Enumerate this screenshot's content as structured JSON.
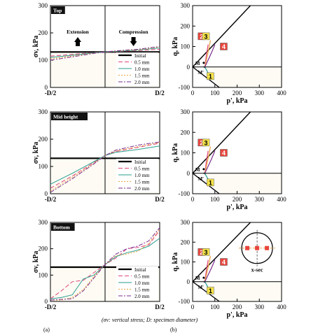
{
  "figure": {
    "caption": "(σv: vertical stress; D: specimen diameter)",
    "label_a": "(a)",
    "label_b": "(b)"
  },
  "legend": {
    "initial": "Initial",
    "mm05": "0.5 mm",
    "mm10": "1.0 mm",
    "mm15": "1.5 mm",
    "mm20": "2.0 mm"
  },
  "colors": {
    "initial": "#000000",
    "mm05": "#e0457b",
    "mm10": "#2a9d8f",
    "mm15": "#e9a23b",
    "mm20": "#7b2d8e",
    "badge_red": "#e8453c",
    "badge_yellow": "#f7e44a"
  },
  "chart_data": [
    {
      "type": "line",
      "panel": "left-top",
      "tag": "Top",
      "ylabel": "σv, kPa",
      "ylim": [
        0,
        300
      ],
      "yticks": [
        "0",
        "100",
        "200",
        "300"
      ],
      "xticks": [
        "-D/2",
        "D/2"
      ],
      "x": [
        0,
        0.2,
        0.4,
        0.5,
        0.6,
        0.8,
        1.0
      ],
      "annotations": [
        "Extension",
        "Compression"
      ],
      "series": [
        {
          "name": "Initial",
          "values": [
            130,
            130,
            130,
            130,
            130,
            130,
            130
          ]
        },
        {
          "name": "0.5 mm",
          "values": [
            115,
            121,
            128,
            130,
            131,
            135,
            140
          ]
        },
        {
          "name": "1.0 mm",
          "values": [
            110,
            118,
            127,
            130,
            132,
            137,
            145
          ]
        },
        {
          "name": "1.5 mm",
          "values": [
            105,
            115,
            126,
            130,
            133,
            138,
            148
          ]
        },
        {
          "name": "2.0 mm",
          "values": [
            100,
            112,
            125,
            130,
            134,
            140,
            150
          ]
        }
      ]
    },
    {
      "type": "line",
      "panel": "left-mid",
      "tag": "Mid height",
      "ylabel": "σv, kPa",
      "ylim": [
        0,
        300
      ],
      "yticks": [
        "0",
        "100",
        "200",
        "300"
      ],
      "xticks": [
        "-D/2",
        "D/2"
      ],
      "x": [
        0,
        0.2,
        0.4,
        0.5,
        0.6,
        0.8,
        1.0
      ],
      "series": [
        {
          "name": "Initial",
          "values": [
            130,
            130,
            130,
            130,
            130,
            130,
            130
          ]
        },
        {
          "name": "0.5 mm",
          "values": [
            20,
            65,
            115,
            140,
            155,
            170,
            185
          ]
        },
        {
          "name": "1.0 mm",
          "values": [
            35,
            75,
            118,
            140,
            152,
            162,
            175
          ]
        },
        {
          "name": "1.5 mm",
          "values": [
            10,
            60,
            112,
            140,
            157,
            172,
            188
          ]
        },
        {
          "name": "2.0 mm",
          "values": [
            5,
            55,
            110,
            140,
            160,
            178,
            190
          ]
        }
      ]
    },
    {
      "type": "line",
      "panel": "left-bottom",
      "tag": "Bottom",
      "ylabel": "σv, kPa",
      "ylim": [
        0,
        300
      ],
      "yticks": [
        "0",
        "100",
        "200",
        "300"
      ],
      "xticks": [
        "-D/2",
        "D/2"
      ],
      "x": [
        0,
        0.1,
        0.2,
        0.3,
        0.4,
        0.5,
        0.6,
        0.7,
        0.8,
        0.9,
        1.0
      ],
      "series": [
        {
          "name": "Initial",
          "values": [
            130,
            130,
            130,
            130,
            130,
            130,
            130,
            130,
            130,
            130,
            130
          ]
        },
        {
          "name": "0.5 mm",
          "values": [
            10,
            40,
            75,
            80,
            110,
            140,
            165,
            200,
            205,
            215,
            270
          ]
        },
        {
          "name": "1.0 mm",
          "values": [
            10,
            15,
            25,
            85,
            100,
            140,
            170,
            185,
            195,
            210,
            240
          ]
        },
        {
          "name": "1.5 mm",
          "values": [
            5,
            5,
            15,
            45,
            95,
            140,
            175,
            180,
            190,
            220,
            275
          ]
        },
        {
          "name": "2.0 mm",
          "values": [
            5,
            8,
            10,
            40,
            90,
            140,
            180,
            200,
            210,
            230,
            280
          ]
        }
      ]
    },
    {
      "type": "line",
      "panel": "right-top",
      "xlabel": "p', kPa",
      "ylabel": "q, kPa",
      "xlim": [
        0,
        400
      ],
      "ylim": [
        -100,
        300
      ],
      "xticks": [
        "0",
        "100",
        "200",
        "300",
        "400"
      ],
      "yticks": [
        "-100",
        "0",
        "100",
        "200",
        "300"
      ],
      "markers": [
        "1",
        "2",
        "3",
        "4"
      ],
      "point_labels": [
        "M",
        "M'"
      ]
    },
    {
      "type": "line",
      "panel": "right-mid",
      "xlabel": "p', kPa",
      "ylabel": "q, kPa",
      "xlim": [
        0,
        400
      ],
      "ylim": [
        -100,
        300
      ],
      "xticks": [
        "0",
        "100",
        "200",
        "300",
        "400"
      ],
      "yticks": [
        "-100",
        "0",
        "100",
        "200",
        "300"
      ],
      "markers": [
        "1",
        "2",
        "3",
        "4"
      ],
      "point_labels": [
        "M",
        "M'"
      ]
    },
    {
      "type": "line",
      "panel": "right-bottom",
      "xlabel": "p', kPa",
      "ylabel": "q, kPa",
      "xlim": [
        0,
        400
      ],
      "ylim": [
        -100,
        300
      ],
      "xticks": [
        "0",
        "100",
        "200",
        "300",
        "400"
      ],
      "yticks": [
        "-100",
        "0",
        "100",
        "200",
        "300"
      ],
      "markers": [
        "1",
        "2",
        "3",
        "4"
      ],
      "point_labels": [
        "M",
        "M'"
      ],
      "inset_label": "x-sec"
    }
  ]
}
